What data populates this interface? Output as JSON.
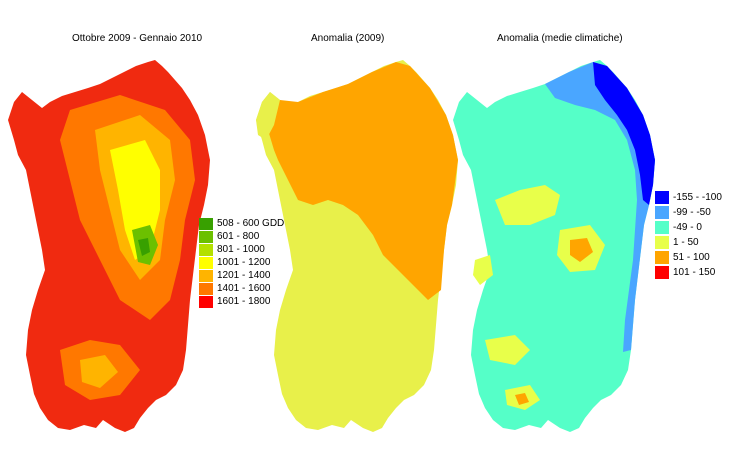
{
  "maps": [
    {
      "title": "Ottobre 2009 - Gennaio 2010",
      "base_color": "#f04a1a",
      "legend": [
        {
          "label": "508 - 600 GDD",
          "color": "#38a000"
        },
        {
          "label": "601 - 800",
          "color": "#6cc000"
        },
        {
          "label": "801 - 1000",
          "color": "#b4e000"
        },
        {
          "label": "1001 - 1200",
          "color": "#ffff00"
        },
        {
          "label": "1201 - 1400",
          "color": "#ffb400"
        },
        {
          "label": "1401 - 1600",
          "color": "#ff7800"
        },
        {
          "label": "1601 - 1800",
          "color": "#ff0000"
        }
      ]
    },
    {
      "title": "Anomalia (2009)",
      "base_color": "#e8f04a",
      "north_color": "#ffa500"
    },
    {
      "title": "Anomalia (medie climatiche)",
      "base_color": "#55ffc8",
      "legend": [
        {
          "label": "-155 - -100",
          "color": "#0000ff"
        },
        {
          "label": "-99 - -50",
          "color": "#4aa6ff"
        },
        {
          "label": "-49 - 0",
          "color": "#55ffc8"
        },
        {
          "label": "1 - 50",
          "color": "#e8ff4a"
        },
        {
          "label": "51 - 100",
          "color": "#ffa500"
        },
        {
          "label": "101 - 150",
          "color": "#ff0000"
        }
      ]
    }
  ]
}
